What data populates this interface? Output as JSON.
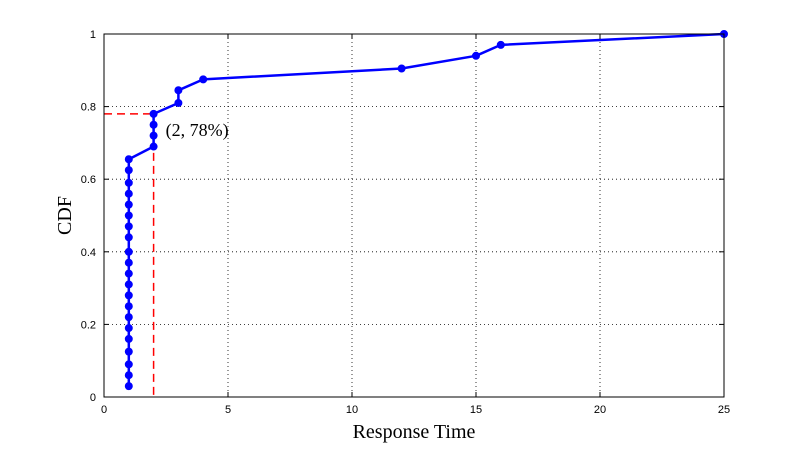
{
  "chart_data": {
    "type": "line",
    "title": "",
    "xlabel": "Response Time",
    "ylabel": "CDF",
    "xlim": [
      0,
      25
    ],
    "ylim": [
      0,
      1
    ],
    "x_ticks": [
      "0",
      "5",
      "10",
      "15",
      "20",
      "25"
    ],
    "y_ticks": [
      "0",
      "0.2",
      "0.4",
      "0.6",
      "0.8",
      "1"
    ],
    "grid": true,
    "legend": "none",
    "series": [
      {
        "color": "#0000ff",
        "marker": "circle",
        "points": [
          [
            1,
            0.03
          ],
          [
            1,
            0.06
          ],
          [
            1,
            0.09
          ],
          [
            1,
            0.125
          ],
          [
            1,
            0.16
          ],
          [
            1,
            0.19
          ],
          [
            1,
            0.22
          ],
          [
            1,
            0.25
          ],
          [
            1,
            0.28
          ],
          [
            1,
            0.31
          ],
          [
            1,
            0.34
          ],
          [
            1,
            0.37
          ],
          [
            1,
            0.4
          ],
          [
            1,
            0.44
          ],
          [
            1,
            0.47
          ],
          [
            1,
            0.5
          ],
          [
            1,
            0.53
          ],
          [
            1,
            0.56
          ],
          [
            1,
            0.59
          ],
          [
            1,
            0.625
          ],
          [
            1,
            0.655
          ],
          [
            2,
            0.69
          ],
          [
            2,
            0.72
          ],
          [
            2,
            0.75
          ],
          [
            2,
            0.78
          ],
          [
            3,
            0.81
          ],
          [
            3,
            0.845
          ],
          [
            4,
            0.875
          ],
          [
            12,
            0.905
          ],
          [
            15,
            0.94
          ],
          [
            16,
            0.97
          ],
          [
            25,
            1.0
          ]
        ]
      }
    ],
    "annotations": [
      {
        "text": "(2, 78%)",
        "point": [
          2,
          0.78
        ],
        "guide_color": "#ff0000",
        "guide_style": "dashed"
      }
    ]
  }
}
